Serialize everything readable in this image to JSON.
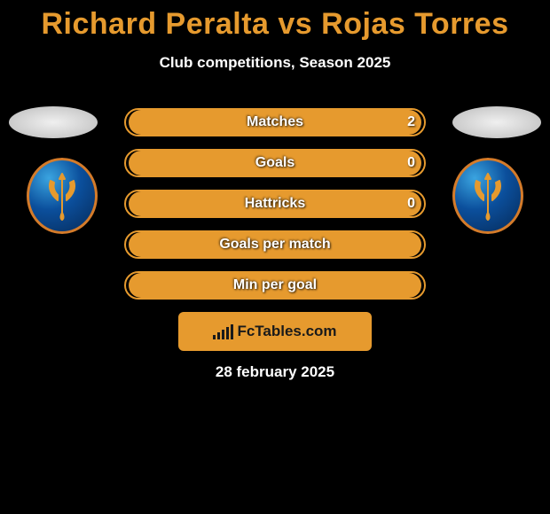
{
  "title_color": "#e69a2e",
  "title": "Richard Peralta vs Rojas Torres",
  "subtitle": "Club competitions, Season 2025",
  "stat_border_color": "#e69a2e",
  "stat_fill_color": "#e69a2e",
  "stats": [
    {
      "label": "Matches",
      "right_value": "2",
      "fill_pct": 98
    },
    {
      "label": "Goals",
      "right_value": "0",
      "fill_pct": 98
    },
    {
      "label": "Hattricks",
      "right_value": "0",
      "fill_pct": 98
    },
    {
      "label": "Goals per match",
      "right_value": "",
      "fill_pct": 98
    },
    {
      "label": "Min per goal",
      "right_value": "",
      "fill_pct": 98
    }
  ],
  "site": "FcTables.com",
  "date": "28 february 2025",
  "badge_colors": {
    "outer": "#d47b2a",
    "grad_light": "#3aa4e0",
    "grad_mid": "#0b4f9c",
    "grad_dark": "#062a58",
    "trident": "#e69a2e"
  }
}
